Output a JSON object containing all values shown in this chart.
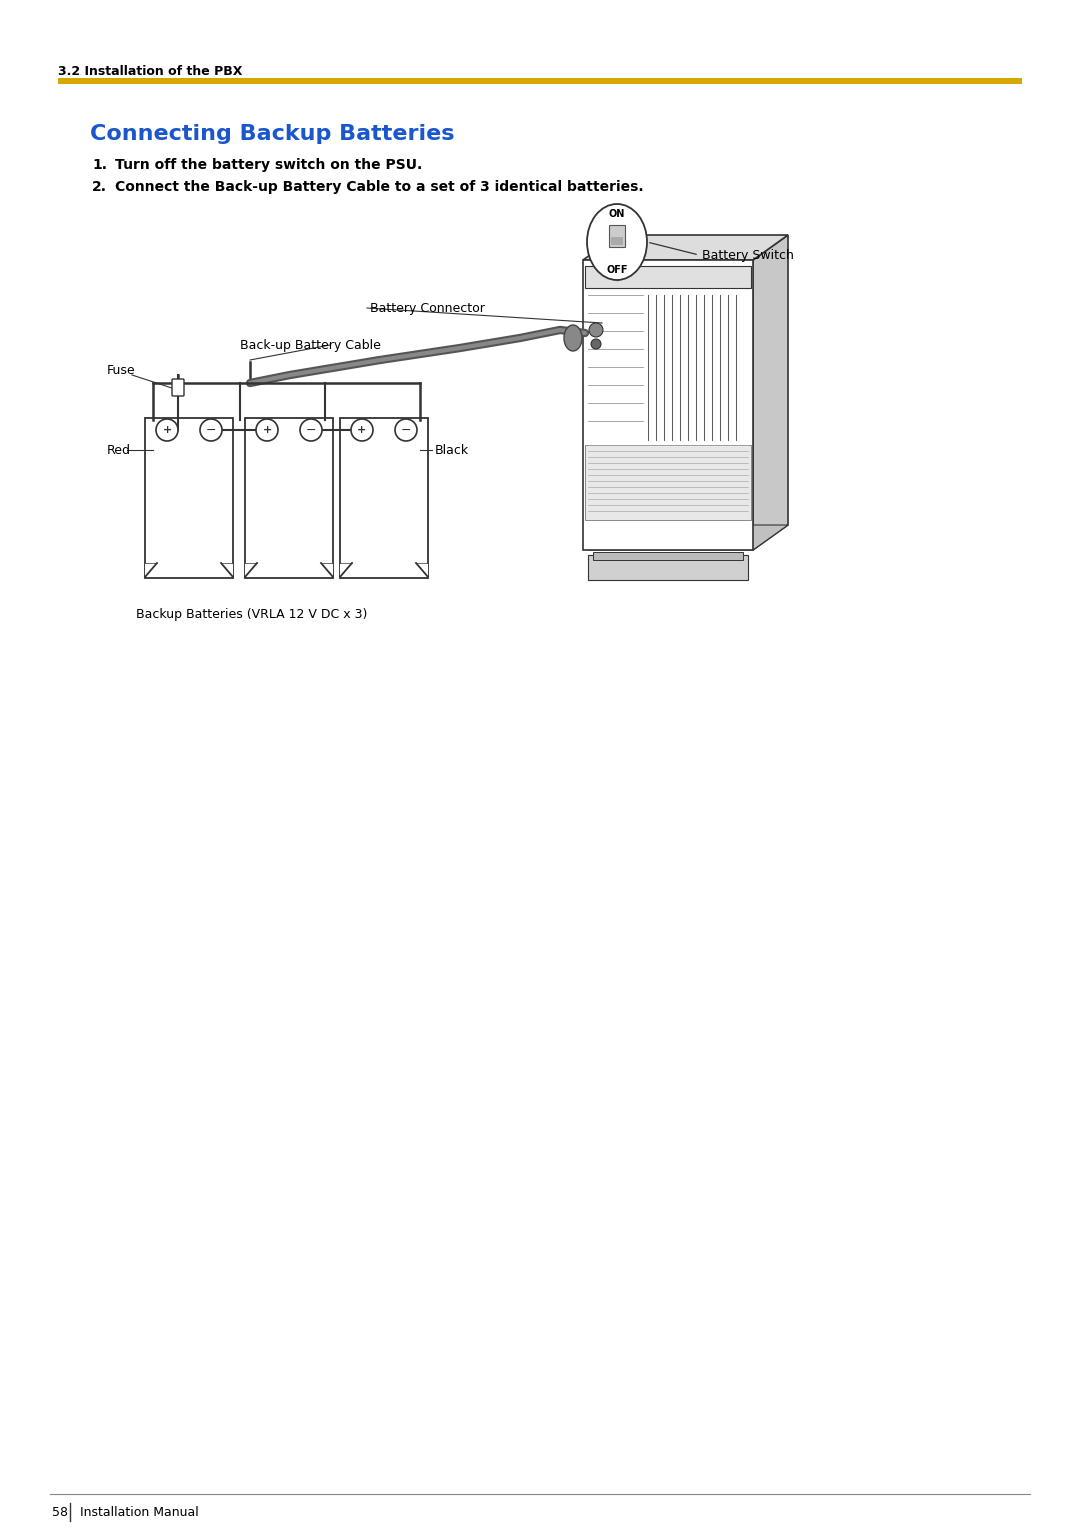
{
  "bg_color": "#ffffff",
  "header_section_text": "3.2 Installation of the PBX",
  "header_line_color": "#d4a800",
  "title": "Connecting Backup Batteries",
  "title_color": "#1a56cc",
  "step1": "Turn off the battery switch on the PSU.",
  "step2": "Connect the Back-up Battery Cable to a set of 3 identical batteries.",
  "label_battery_connector": "Battery Connector",
  "label_backup_cable": "Back-up Battery Cable",
  "label_fuse": "Fuse",
  "label_red": "Red",
  "label_black": "Black",
  "label_battery_switch": "Battery Switch",
  "label_on": "ON",
  "label_off": "OFF",
  "label_backup_batteries": "Backup Batteries (VRLA 12 V DC x 3)",
  "footer_page": "58",
  "footer_text": "Installation Manual",
  "line_color": "#333333"
}
